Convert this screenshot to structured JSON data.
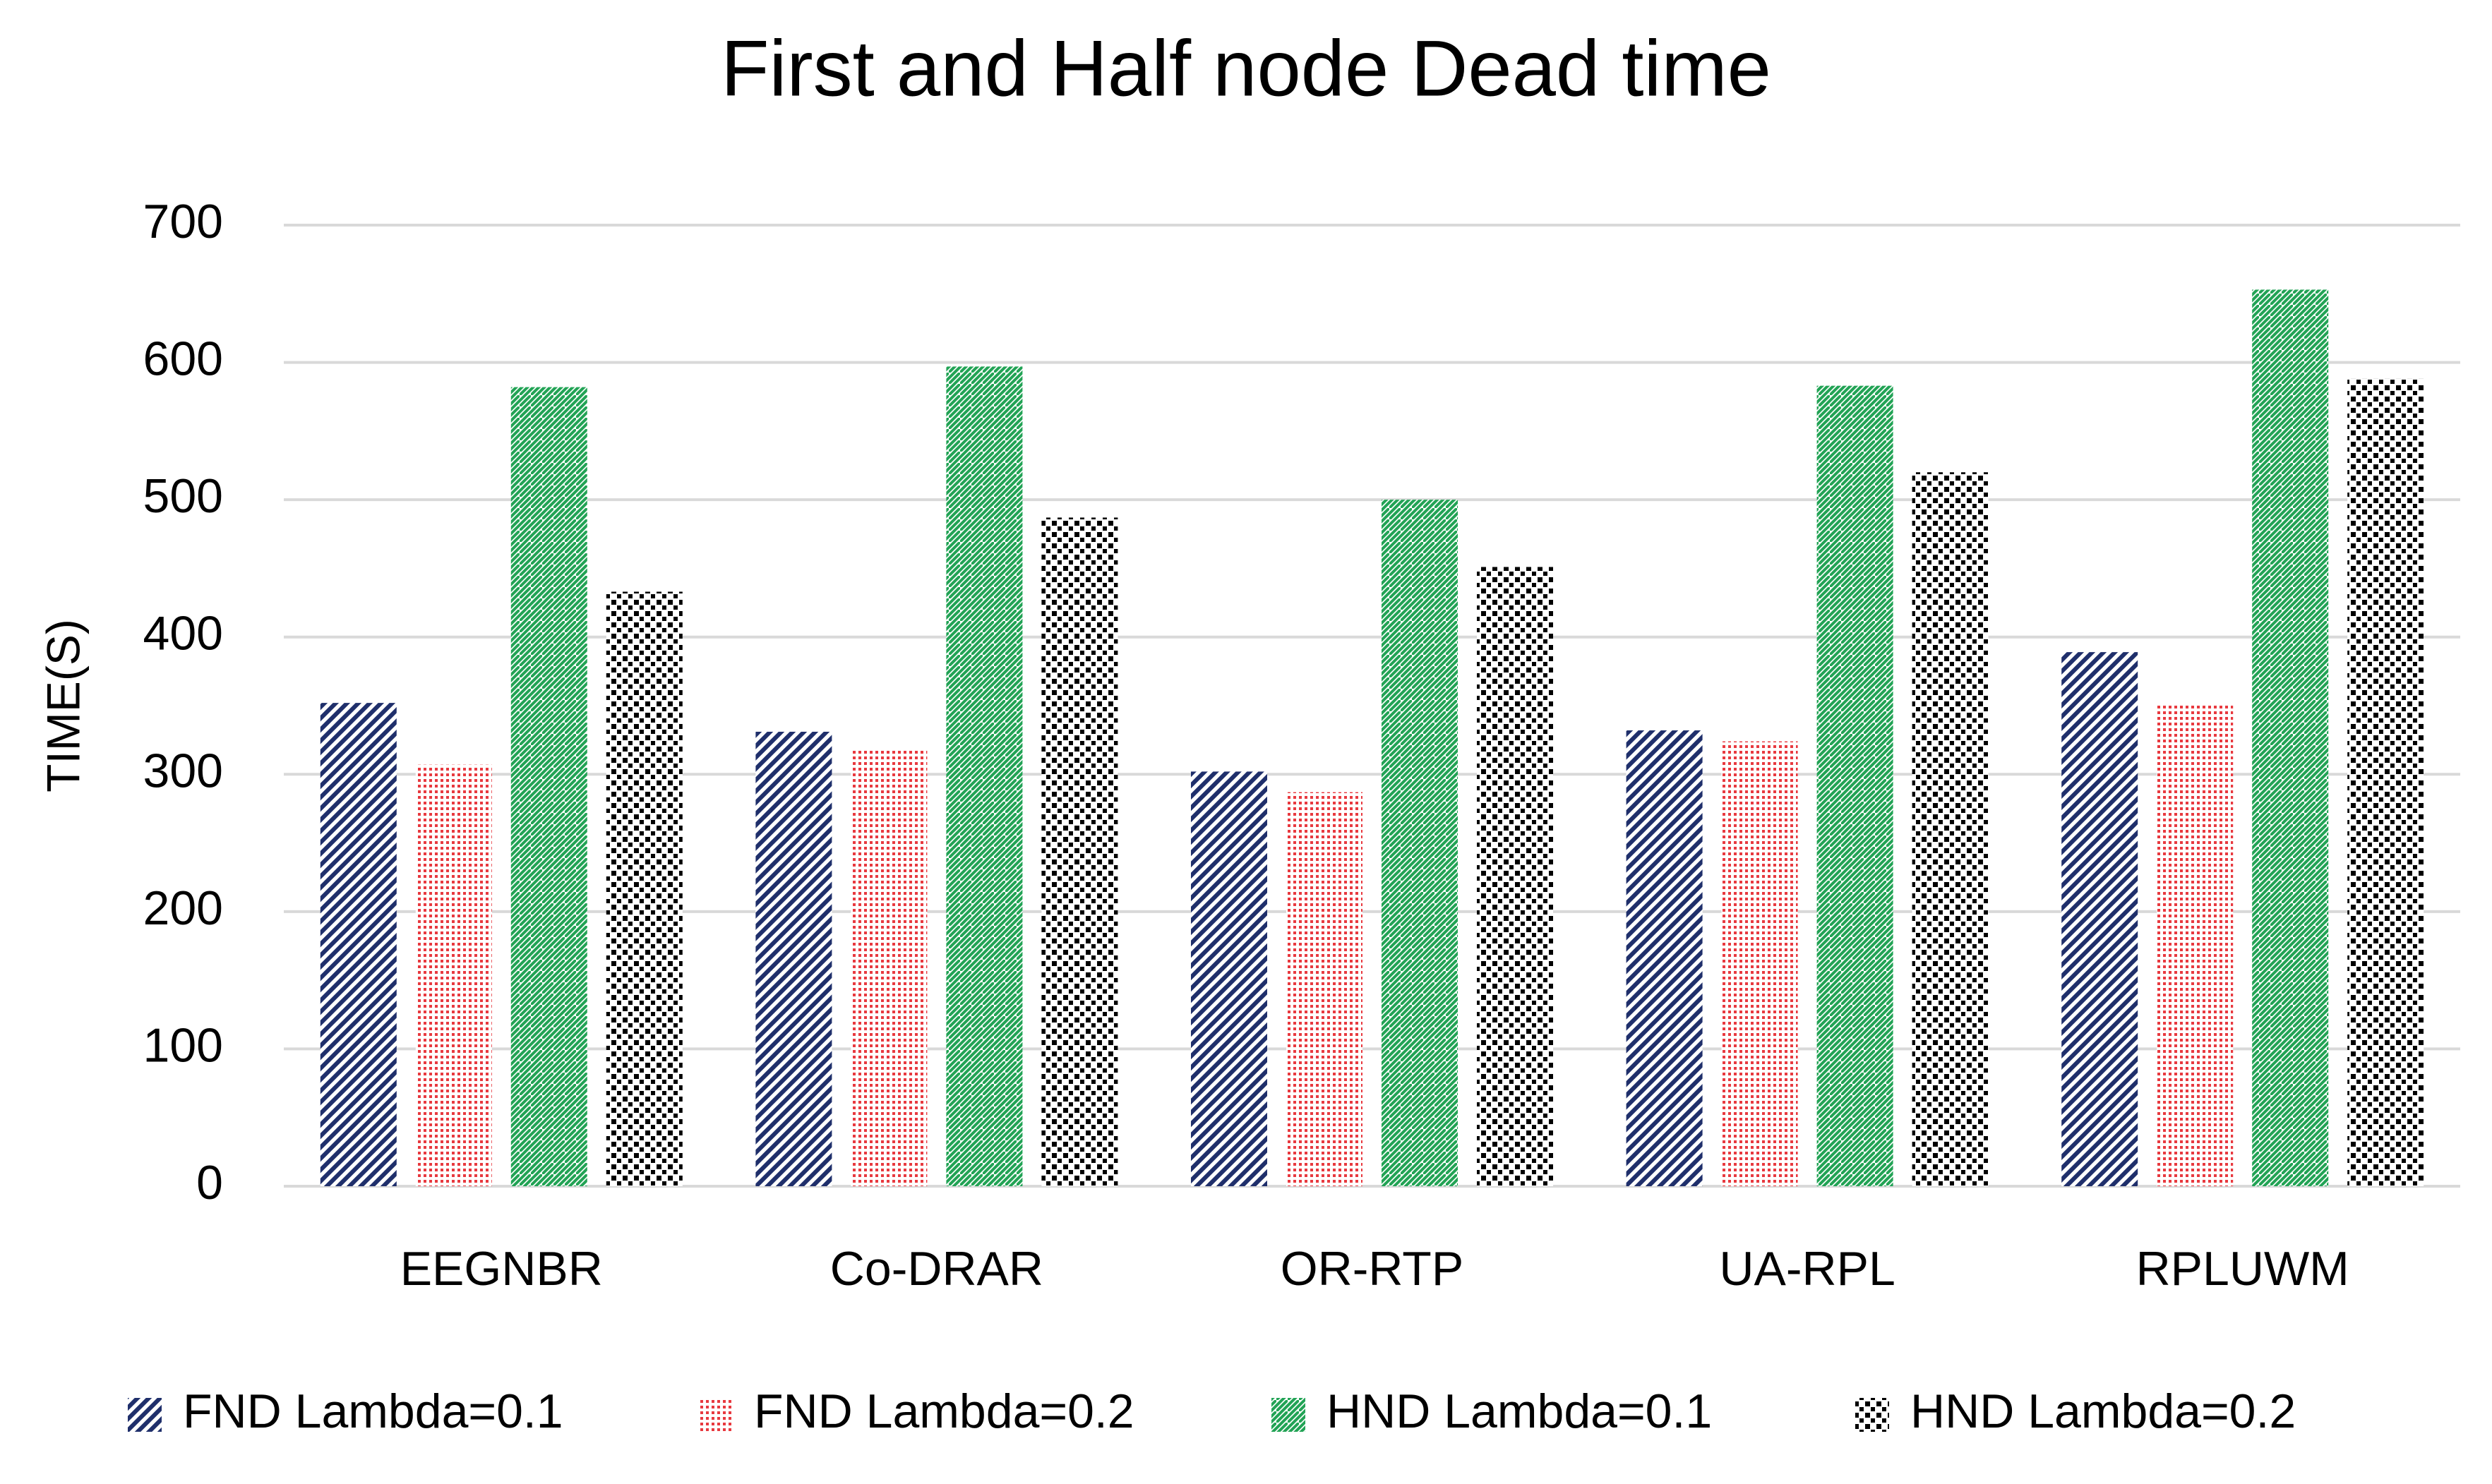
{
  "chart_data": {
    "type": "bar",
    "title": "First and Half node Dead time",
    "y_label": "TIME(S)",
    "categories": [
      "EEGNBR",
      "Co-DRAR",
      "OR-RTP",
      "UA-RPL",
      "RPLUWM"
    ],
    "series": [
      {
        "name": "FND Lambda=0.1",
        "color": "#1f2f6b",
        "values": [
          352,
          331,
          302,
          332,
          389
        ]
      },
      {
        "name": "FND Lambda=0.2",
        "color": "#e8393f",
        "values": [
          307,
          319,
          287,
          324,
          352
        ]
      },
      {
        "name": "HND Lambda=0.1",
        "color": "#22a355",
        "values": [
          582,
          597,
          500,
          583,
          653
        ]
      },
      {
        "name": "HND Lambda=0.2",
        "color": "#000000",
        "values": [
          433,
          487,
          451,
          520,
          588
        ]
      }
    ],
    "ylim": [
      0,
      700
    ],
    "yticks": [
      0,
      100,
      200,
      300,
      400,
      500,
      600,
      700
    ],
    "grid": true,
    "legend": "bottom"
  }
}
